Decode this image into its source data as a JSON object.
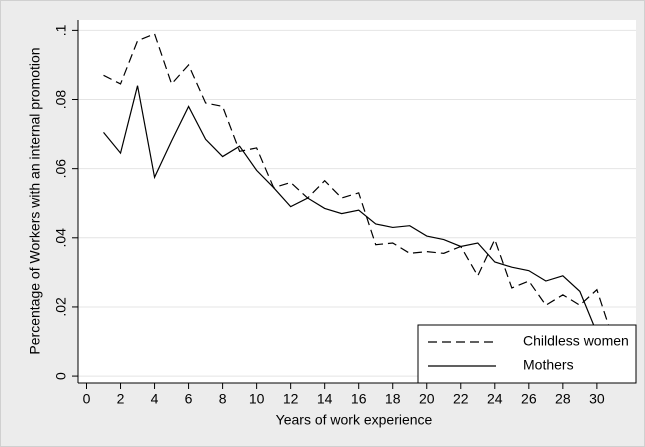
{
  "chart_data": {
    "type": "line",
    "x_label": "Years of work experience",
    "y_label": "Percentage of Workers with an internal promotion",
    "x": [
      1,
      2,
      3,
      4,
      5,
      6,
      7,
      8,
      9,
      10,
      11,
      12,
      13,
      14,
      15,
      16,
      17,
      18,
      19,
      20,
      21,
      22,
      23,
      24,
      25,
      26,
      27,
      28,
      29,
      30,
      31
    ],
    "series": [
      {
        "name": "Childless women",
        "color": "#000000",
        "dash": "dashed",
        "values": [
          0.087,
          0.0845,
          0.097,
          0.099,
          0.0845,
          0.09,
          0.079,
          0.078,
          0.065,
          0.066,
          0.0545,
          0.056,
          0.0515,
          0.0565,
          0.0515,
          0.053,
          0.038,
          0.0385,
          0.0355,
          0.036,
          0.0355,
          0.0375,
          0.029,
          0.0395,
          0.0255,
          0.0275,
          0.0205,
          0.0235,
          0.0205,
          0.025,
          0.01
        ]
      },
      {
        "name": "Mothers",
        "color": "#000000",
        "dash": "solid",
        "values": [
          0.0705,
          0.0645,
          0.084,
          0.0575,
          0.068,
          0.078,
          0.0685,
          0.0635,
          0.0665,
          0.0595,
          0.0545,
          0.049,
          0.0515,
          0.0485,
          0.047,
          0.048,
          0.044,
          0.043,
          0.0435,
          0.0405,
          0.0395,
          0.0375,
          0.0385,
          0.033,
          0.0315,
          0.0305,
          0.0275,
          0.029,
          0.0245,
          0.0125,
          0.011
        ]
      }
    ],
    "xlim": [
      -0.5,
      32.3
    ],
    "ylim": [
      -0.002,
      0.103
    ],
    "xticks": [
      0,
      2,
      4,
      6,
      8,
      10,
      12,
      14,
      16,
      18,
      20,
      22,
      24,
      26,
      28,
      30
    ],
    "yticks": [
      0,
      {
        "value": 0.02,
        "label": ".02"
      },
      {
        "value": 0.04,
        "label": ".04"
      },
      {
        "value": 0.06,
        "label": ".06"
      },
      {
        "value": 0.08,
        "label": ".08"
      },
      {
        "value": 0.1,
        "label": ".1"
      }
    ],
    "grid": true,
    "legend": "lower right"
  }
}
